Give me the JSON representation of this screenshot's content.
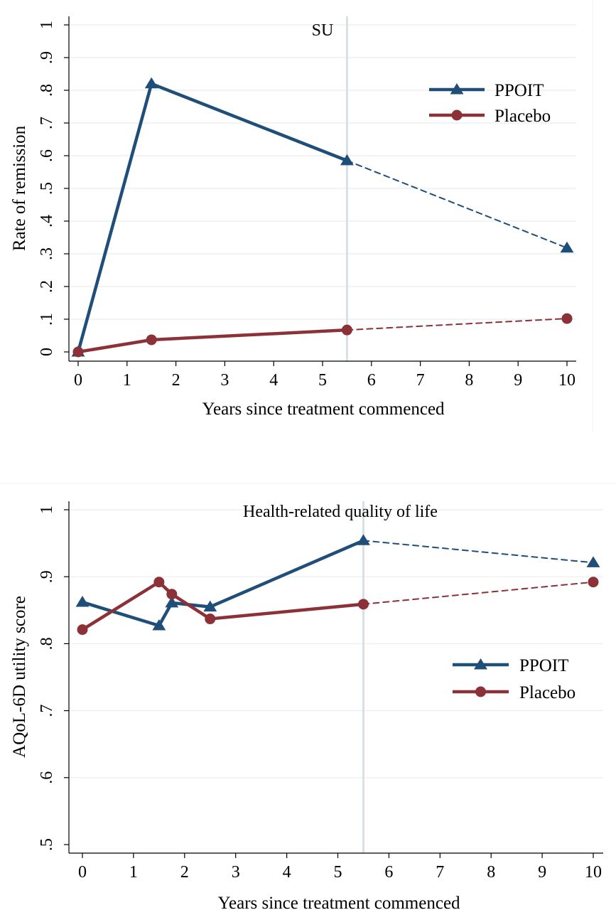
{
  "colors": {
    "ppoit": "#1f4e79",
    "placebo": "#8b3137",
    "grid": "#e8eef2",
    "reference_line": "#d9dfe3"
  },
  "chart_data": [
    {
      "type": "line",
      "title": "",
      "xlabel": "Years since treatment commenced",
      "ylabel": "Rate of remission",
      "xlim": [
        0,
        10
      ],
      "ylim": [
        0,
        1
      ],
      "x_ticks": [
        0,
        1,
        2,
        3,
        4,
        5,
        6,
        7,
        8,
        9,
        10
      ],
      "x_tick_labels": [
        "0",
        "1",
        "2",
        "3",
        "4",
        "5",
        "6",
        "7",
        "8",
        "9",
        "10"
      ],
      "y_ticks": [
        0,
        0.1,
        0.2,
        0.3,
        0.4,
        0.5,
        0.6,
        0.7,
        0.8,
        0.9,
        1
      ],
      "y_tick_labels": [
        "0",
        ".1",
        ".2",
        ".3",
        ".4",
        ".5",
        ".6",
        ".7",
        ".8",
        ".9",
        "1"
      ],
      "grid": true,
      "legend_position": "top-right",
      "reference_line": {
        "x": 5.5,
        "label": "SU"
      },
      "series": [
        {
          "name": "PPOIT",
          "marker": "triangle",
          "color": "#1f4e79",
          "x": [
            0,
            1.5,
            5.5,
            10
          ],
          "y": [
            0,
            0.82,
            0.585,
            0.318
          ],
          "dashed_after_x": 5.5
        },
        {
          "name": "Placebo",
          "marker": "circle",
          "color": "#8b3137",
          "x": [
            0,
            1.5,
            5.5,
            10
          ],
          "y": [
            0,
            0.037,
            0.067,
            0.102
          ],
          "dashed_after_x": 5.5
        }
      ]
    },
    {
      "type": "line",
      "title": "Health-related quality of life",
      "xlabel": "Years since treatment commenced",
      "ylabel": "AQoL-6D utility score",
      "xlim": [
        0,
        10
      ],
      "ylim": [
        0.5,
        1
      ],
      "x_ticks": [
        0,
        1,
        2,
        3,
        4,
        5,
        6,
        7,
        8,
        9,
        10
      ],
      "x_tick_labels": [
        "0",
        "1",
        "2",
        "3",
        "4",
        "5",
        "6",
        "7",
        "8",
        "9",
        "10"
      ],
      "y_ticks": [
        0.5,
        0.6,
        0.7,
        0.8,
        0.9,
        1
      ],
      "y_tick_labels": [
        ".5",
        ".6",
        ".7",
        ".8",
        ".9",
        "1"
      ],
      "grid": true,
      "legend_position": "right",
      "reference_line": {
        "x": 5.5,
        "label": ""
      },
      "series": [
        {
          "name": "PPOIT",
          "marker": "triangle",
          "color": "#1f4e79",
          "x": [
            0,
            1.5,
            1.75,
            2.5,
            5.5,
            10
          ],
          "y": [
            0.862,
            0.827,
            0.861,
            0.855,
            0.954,
            0.921
          ],
          "dashed_after_x": 5.5
        },
        {
          "name": "Placebo",
          "marker": "circle",
          "color": "#8b3137",
          "x": [
            0,
            1.5,
            1.75,
            2.5,
            5.5,
            10
          ],
          "y": [
            0.821,
            0.892,
            0.874,
            0.837,
            0.859,
            0.892
          ],
          "dashed_after_x": 5.5
        }
      ]
    }
  ]
}
